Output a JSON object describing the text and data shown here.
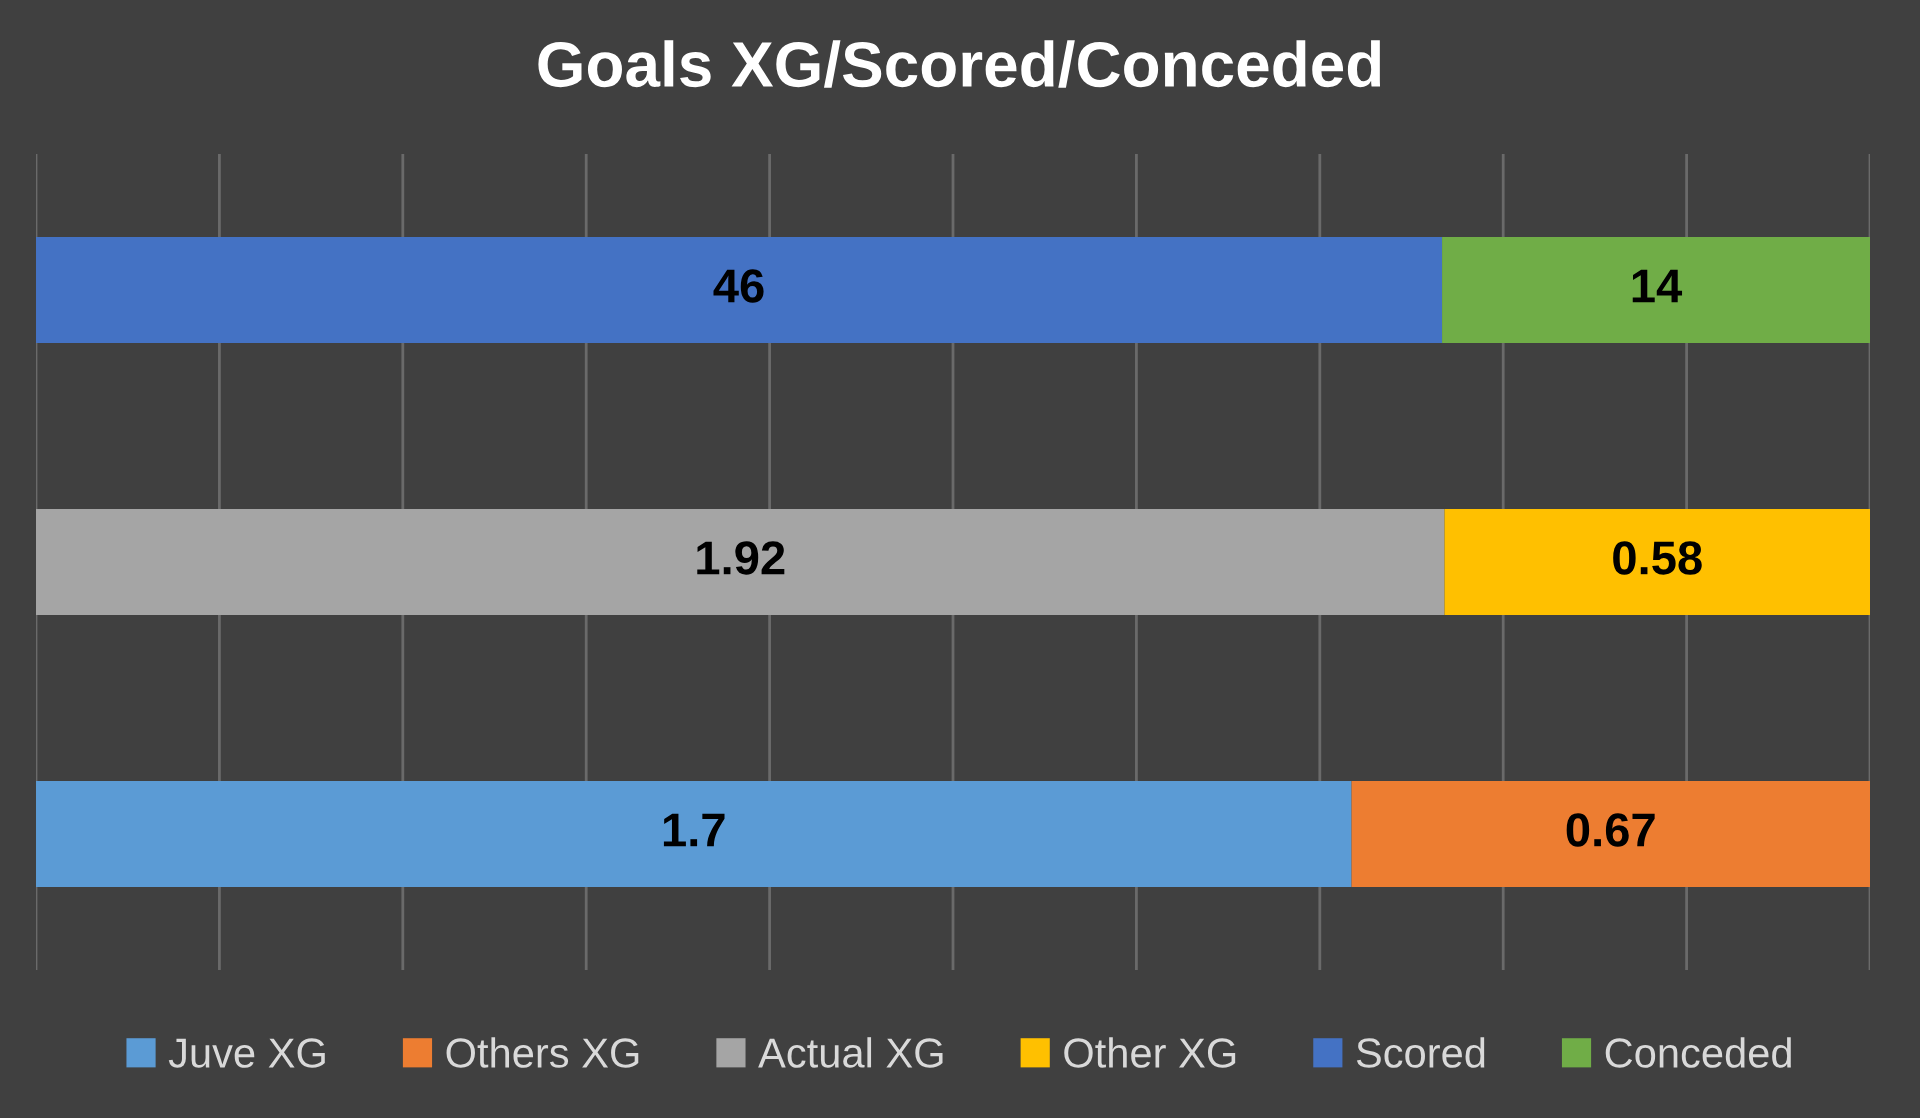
{
  "chart_data": [
    {
      "type": "bar",
      "title": "Goals XG/Scored/Conceded",
      "orientation": "horizontal",
      "stacked": true,
      "categories": [
        null
      ],
      "series": [
        {
          "name": "Scored",
          "color": "#4472c4",
          "values": [
            46
          ]
        },
        {
          "name": "Conceded",
          "color": "#70ad47",
          "values": [
            14
          ]
        }
      ],
      "data_labels": true,
      "grid": "x",
      "legend": "bottom",
      "tick_labels": false
    },
    {
      "type": "bar",
      "orientation": "horizontal",
      "stacked": true,
      "categories": [
        null
      ],
      "series": [
        {
          "name": "Actual XG",
          "color": "#a5a5a5",
          "values": [
            1.92
          ]
        },
        {
          "name": "Other XG",
          "color": "#ffc000",
          "values": [
            0.58
          ]
        }
      ],
      "data_labels": true,
      "grid": "x",
      "legend": "bottom",
      "tick_labels": false
    },
    {
      "type": "bar",
      "orientation": "horizontal",
      "stacked": true,
      "categories": [
        null
      ],
      "series": [
        {
          "name": "Juve XG",
          "color": "#5b9bd5",
          "values": [
            1.7
          ]
        },
        {
          "name": "Others XG",
          "color": "#ed7d31",
          "values": [
            0.67
          ]
        }
      ],
      "data_labels": true,
      "grid": "x",
      "legend": "bottom",
      "tick_labels": false
    }
  ]
}
